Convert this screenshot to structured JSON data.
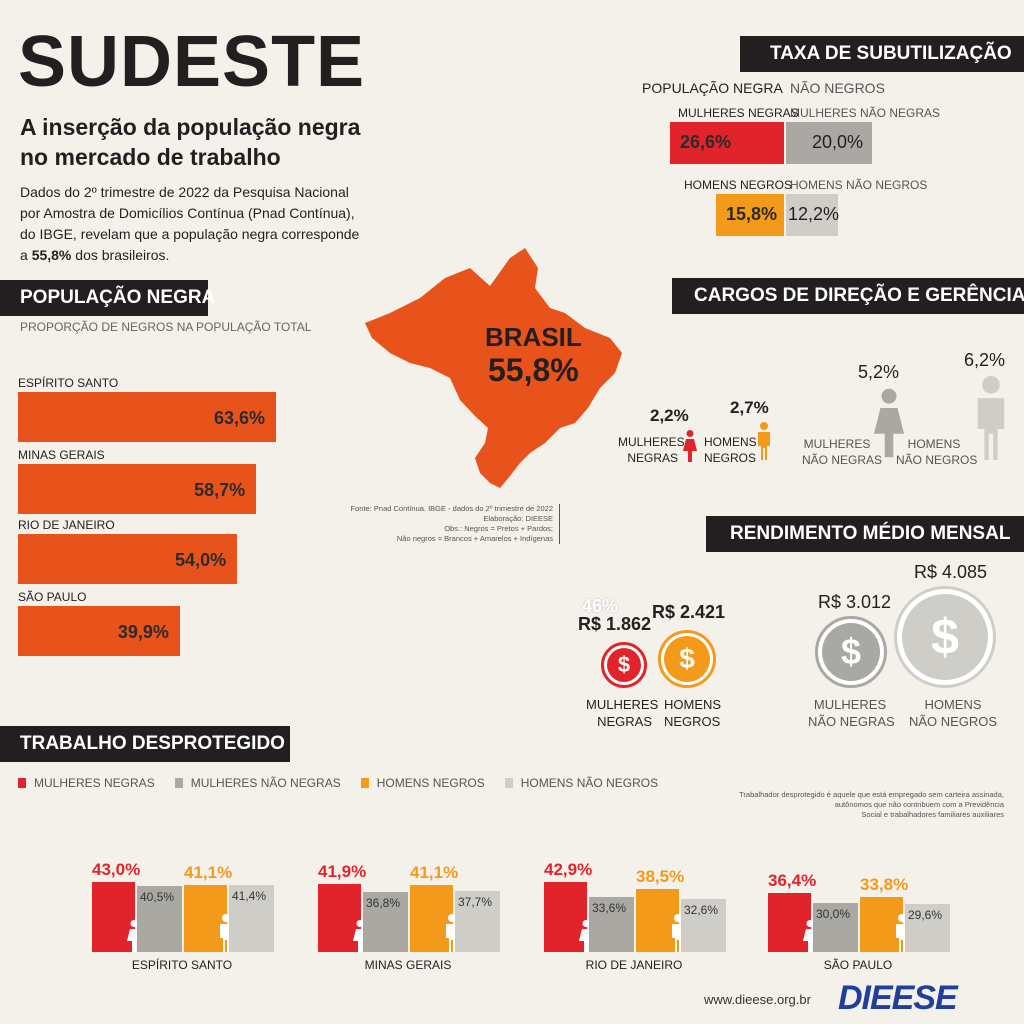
{
  "header": {
    "title": "SUDESTE",
    "subtitle_line1": "A inserção da população negra",
    "subtitle_line2": "no mercado de trabalho",
    "intro_l1": "Dados do 2º trimestre de 2022 da Pesquisa Nacional",
    "intro_l2": "por Amostra de Domicílios Contínua (Pnad Contínua),",
    "intro_l3": "do IBGE, revelam que a população negra corresponde",
    "intro_l4_pre": "a ",
    "intro_l4_bold": "55,8%",
    "intro_l4_post": " dos brasileiros."
  },
  "populacao": {
    "title": "POPULAÇÃO NEGRA",
    "subtitle": "PROPORÇÃO DE NEGROS NA POPULAÇÃO TOTAL",
    "states": [
      {
        "name": "ESPÍRITO SANTO",
        "label": "63,6%",
        "value": 63.6
      },
      {
        "name": "MINAS GERAIS",
        "label": "58,7%",
        "value": 58.7
      },
      {
        "name": "RIO DE JANEIRO",
        "label": "54,0%",
        "value": 54.0
      },
      {
        "name": "SÃO PAULO",
        "label": "39,9%",
        "value": 39.9
      }
    ]
  },
  "map": {
    "label": "BRASIL",
    "value": "55,8%",
    "color": "#e8531c",
    "source_l1": "Fonte: Pnad Contínua. IBGE - dados do 2º trimestre de 2022",
    "source_l2": "Elaboração: DIEESE",
    "source_l3": "Obs.: Negros = Pretos + Pardos;",
    "source_l4": "Não negros = Brancos + Amarelos + Indígenas"
  },
  "subutilizacao": {
    "title": "TAXA DE SUBUTILIZAÇÃO",
    "col_left": "POPULAÇÃO NEGRA",
    "col_right": "NÃO NEGROS",
    "women_left": "MULHERES NEGRAS",
    "women_right": "MULHERES NÃO NEGRAS",
    "women_left_value": "26,6%",
    "women_right_value": "20,0%",
    "men_left": "HOMENS NEGROS",
    "men_right": "HOMENS NÃO NEGROS",
    "men_left_value": "15,8%",
    "men_right_value": "12,2%"
  },
  "cargos": {
    "title": "CARGOS DE DIREÇÃO E GERÊNCIA",
    "mn_value": "2,2%",
    "mn_l1": "MULHERES",
    "mn_l2": "NEGRAS",
    "hn_value": "2,7%",
    "hn_l1": "HOMENS",
    "hn_l2": "NEGROS",
    "mnn_value": "5,2%",
    "mnn_l1": "MULHERES",
    "mnn_l2": "NÃO NEGRAS",
    "hnn_value": "6,2%",
    "hnn_l1": "HOMENS",
    "hnn_l2": "NÃO NEGROS"
  },
  "rendimento": {
    "title": "RENDIMENTO MÉDIO MENSAL",
    "overlay": "46%",
    "mn_value": "R$ 1.862",
    "mn_l1": "MULHERES",
    "mn_l2": "NEGRAS",
    "hn_value": "R$ 2.421",
    "hn_l1": "HOMENS",
    "hn_l2": "NEGROS",
    "mnn_value": "R$ 3.012",
    "mnn_l1": "MULHERES",
    "mnn_l2": "NÃO NEGRAS",
    "hnn_value": "R$ 4.085",
    "hnn_l1": "HOMENS",
    "hnn_l2": "NÃO NEGROS",
    "coin_symbol": "$"
  },
  "trabalho": {
    "title": "TRABALHO DESPROTEGIDO",
    "legend": [
      {
        "label": "MULHERES NEGRAS",
        "color": "#e1242b"
      },
      {
        "label": "MULHERES NÃO NEGRAS",
        "color": "#a9a8a3"
      },
      {
        "label": "HOMENS NEGROS",
        "color": "#f39a1b"
      },
      {
        "label": "HOMENS NÃO NEGROS",
        "color": "#cfcdc8"
      }
    ],
    "note_l1": "Trabalhador desprotegido é aquele que está empregado sem carteira assinada,",
    "note_l2": "autônomos que não contribuem  com a Previdência",
    "note_l3": "Social e trabalhadores familiares auxiliares"
  },
  "chart_data": {
    "type": "bar",
    "categories": [
      "ESPÍRITO SANTO",
      "MINAS GERAIS",
      "RIO DE JANEIRO",
      "SÃO PAULO"
    ],
    "series": [
      {
        "name": "MULHERES NEGRAS",
        "values": [
          43.0,
          41.9,
          42.9,
          36.4
        ],
        "labels": [
          "43,0%",
          "41,9%",
          "42,9%",
          "36,4%"
        ]
      },
      {
        "name": "MULHERES NÃO NEGRAS",
        "values": [
          40.5,
          36.8,
          33.6,
          30.0
        ],
        "labels": [
          "40,5%",
          "36,8%",
          "33,6%",
          "30,0%"
        ]
      },
      {
        "name": "HOMENS NEGROS",
        "values": [
          41.1,
          41.1,
          38.5,
          33.8
        ],
        "labels": [
          "41,1%",
          "41,1%",
          "38,5%",
          "33,8%"
        ]
      },
      {
        "name": "HOMENS NÃO NEGROS",
        "values": [
          41.4,
          37.7,
          32.6,
          29.6
        ],
        "labels": [
          "41,4%",
          "37,7%",
          "32,6%",
          "29,6%"
        ]
      }
    ],
    "title": "TRABALHO DESPROTEGIDO"
  },
  "footer": {
    "url": "www.dieese.org.br",
    "logo": "DIEESE"
  }
}
